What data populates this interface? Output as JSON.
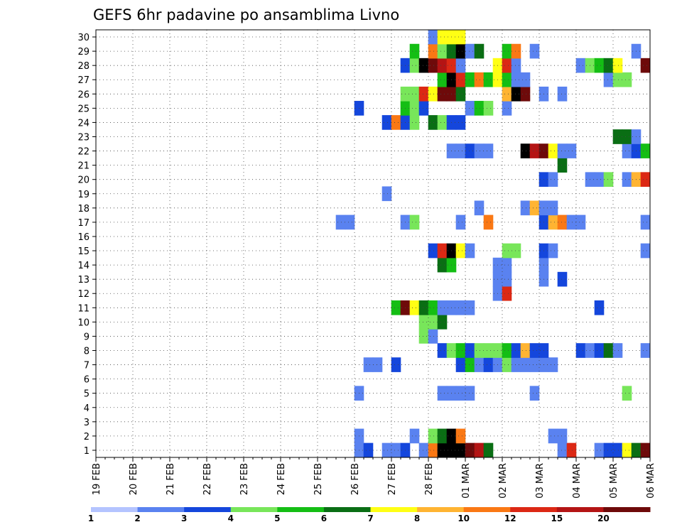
{
  "chart_data": {
    "type": "heatmap",
    "title": "GEFS 6hr padavine po ansamblima Livno",
    "xlabel": "",
    "ylabel": "",
    "x_unit": "6-hour step",
    "x_start": "19 FEB 00Z",
    "x_end": "06 MAR 00Z",
    "x_steps": 60,
    "x_ticks": [
      "19 FEB",
      "20 FEB",
      "21 FEB",
      "22 FEB",
      "23 FEB",
      "24 FEB",
      "25 FEB",
      "26 FEB",
      "27 FEB",
      "28 FEB",
      "01 MAR",
      "02 MAR",
      "03 MAR",
      "04 MAR",
      "05 MAR",
      "06 MAR"
    ],
    "y_ticks": [
      "1",
      "2",
      "3",
      "4",
      "5",
      "6",
      "7",
      "8",
      "9",
      "10",
      "11",
      "12",
      "13",
      "14",
      "15",
      "16",
      "17",
      "18",
      "19",
      "20",
      "21",
      "22",
      "23",
      "24",
      "25",
      "26",
      "27",
      "28",
      "29",
      "30"
    ],
    "ylim": [
      0.5,
      30.5
    ],
    "grid": true,
    "legend": {
      "placement": "bottom",
      "labels": [
        "1",
        "2",
        "3",
        "4",
        "5",
        "6",
        "7",
        "8",
        "10",
        "12",
        "15",
        "20"
      ],
      "colors": [
        "#b4c4ff",
        "#5a82f0",
        "#1446dc",
        "#78e65a",
        "#14be14",
        "#0a6e14",
        "#ffff14",
        "#ffb432",
        "#fa7814",
        "#dc2814",
        "#b41414",
        "#6e0a0a"
      ]
    },
    "note_points": "each point is [step, member, class]; step 0 = 19 FEB 00Z, step 4 = 20 FEB 00Z; class indexes legend.colors",
    "points": [
      [
        28,
        1,
        1
      ],
      [
        29,
        1,
        2
      ],
      [
        31,
        1,
        1
      ],
      [
        32,
        1,
        1
      ],
      [
        33,
        1,
        2
      ],
      [
        35,
        1,
        1
      ],
      [
        36,
        1,
        8
      ],
      [
        37,
        1,
        12
      ],
      [
        38,
        1,
        12
      ],
      [
        39,
        1,
        12
      ],
      [
        40,
        1,
        11
      ],
      [
        41,
        1,
        10
      ],
      [
        42,
        1,
        5
      ],
      [
        50,
        1,
        1
      ],
      [
        51,
        1,
        9
      ],
      [
        54,
        1,
        1
      ],
      [
        55,
        1,
        2
      ],
      [
        56,
        1,
        2
      ],
      [
        57,
        1,
        6
      ],
      [
        58,
        1,
        5
      ],
      [
        59,
        1,
        11
      ],
      [
        28,
        2,
        1
      ],
      [
        34,
        2,
        1
      ],
      [
        36,
        2,
        3
      ],
      [
        37,
        2,
        5
      ],
      [
        38,
        2,
        12
      ],
      [
        39,
        2,
        8
      ],
      [
        49,
        2,
        1
      ],
      [
        50,
        2,
        1
      ],
      [
        28,
        5,
        1
      ],
      [
        37,
        5,
        1
      ],
      [
        38,
        5,
        1
      ],
      [
        39,
        5,
        1
      ],
      [
        40,
        5,
        1
      ],
      [
        47,
        5,
        1
      ],
      [
        57,
        5,
        3
      ],
      [
        29,
        7,
        1
      ],
      [
        30,
        7,
        1
      ],
      [
        32,
        7,
        2
      ],
      [
        39,
        7,
        2
      ],
      [
        40,
        7,
        4
      ],
      [
        41,
        7,
        1
      ],
      [
        42,
        7,
        2
      ],
      [
        43,
        7,
        1
      ],
      [
        44,
        7,
        3
      ],
      [
        45,
        7,
        1
      ],
      [
        46,
        7,
        1
      ],
      [
        47,
        7,
        1
      ],
      [
        48,
        7,
        1
      ],
      [
        49,
        7,
        1
      ],
      [
        37,
        8,
        2
      ],
      [
        38,
        8,
        3
      ],
      [
        39,
        8,
        4
      ],
      [
        40,
        8,
        2
      ],
      [
        41,
        8,
        3
      ],
      [
        42,
        8,
        3
      ],
      [
        43,
        8,
        3
      ],
      [
        44,
        8,
        4
      ],
      [
        45,
        8,
        2
      ],
      [
        46,
        8,
        7
      ],
      [
        47,
        8,
        2
      ],
      [
        48,
        8,
        2
      ],
      [
        52,
        8,
        2
      ],
      [
        53,
        8,
        1
      ],
      [
        54,
        8,
        2
      ],
      [
        55,
        8,
        5
      ],
      [
        56,
        8,
        1
      ],
      [
        59,
        8,
        1
      ],
      [
        60,
        8,
        3
      ],
      [
        61,
        8,
        4
      ],
      [
        62,
        8,
        3
      ],
      [
        35,
        9,
        3
      ],
      [
        36,
        9,
        1
      ],
      [
        35,
        10,
        3
      ],
      [
        36,
        10,
        3
      ],
      [
        37,
        10,
        5
      ],
      [
        62,
        10,
        1
      ],
      [
        63,
        10,
        1
      ],
      [
        32,
        11,
        4
      ],
      [
        33,
        11,
        11
      ],
      [
        34,
        11,
        6
      ],
      [
        35,
        11,
        5
      ],
      [
        36,
        11,
        4
      ],
      [
        37,
        11,
        1
      ],
      [
        38,
        11,
        1
      ],
      [
        39,
        11,
        1
      ],
      [
        40,
        11,
        1
      ],
      [
        54,
        11,
        2
      ],
      [
        43,
        12,
        1
      ],
      [
        44,
        12,
        9
      ],
      [
        43,
        13,
        1
      ],
      [
        44,
        13,
        1
      ],
      [
        48,
        13,
        1
      ],
      [
        50,
        13,
        2
      ],
      [
        37,
        14,
        5
      ],
      [
        38,
        14,
        4
      ],
      [
        43,
        14,
        1
      ],
      [
        44,
        14,
        1
      ],
      [
        48,
        14,
        1
      ],
      [
        62,
        14,
        4
      ],
      [
        63,
        14,
        8
      ],
      [
        36,
        15,
        2
      ],
      [
        37,
        15,
        9
      ],
      [
        38,
        15,
        12
      ],
      [
        39,
        15,
        6
      ],
      [
        40,
        15,
        1
      ],
      [
        44,
        15,
        3
      ],
      [
        45,
        15,
        3
      ],
      [
        48,
        15,
        2
      ],
      [
        49,
        15,
        1
      ],
      [
        59,
        15,
        1
      ],
      [
        60,
        15,
        3
      ],
      [
        61,
        15,
        5
      ],
      [
        62,
        15,
        1
      ],
      [
        63,
        15,
        1
      ],
      [
        26,
        17,
        1
      ],
      [
        27,
        17,
        1
      ],
      [
        33,
        17,
        1
      ],
      [
        34,
        17,
        3
      ],
      [
        39,
        17,
        1
      ],
      [
        42,
        17,
        8
      ],
      [
        48,
        17,
        2
      ],
      [
        49,
        17,
        7
      ],
      [
        50,
        17,
        8
      ],
      [
        51,
        17,
        1
      ],
      [
        52,
        17,
        1
      ],
      [
        59,
        17,
        1
      ],
      [
        60,
        17,
        9
      ],
      [
        61,
        17,
        2
      ],
      [
        62,
        17,
        5
      ],
      [
        41,
        18,
        1
      ],
      [
        46,
        18,
        1
      ],
      [
        47,
        18,
        7
      ],
      [
        48,
        18,
        1
      ],
      [
        49,
        18,
        1
      ],
      [
        60,
        18,
        2
      ],
      [
        61,
        18,
        2
      ],
      [
        31,
        19,
        1
      ],
      [
        48,
        20,
        2
      ],
      [
        49,
        20,
        1
      ],
      [
        53,
        20,
        1
      ],
      [
        54,
        20,
        1
      ],
      [
        55,
        20,
        3
      ],
      [
        57,
        20,
        1
      ],
      [
        58,
        20,
        7
      ],
      [
        59,
        20,
        9
      ],
      [
        60,
        20,
        10
      ],
      [
        61,
        20,
        1
      ],
      [
        50,
        21,
        5
      ],
      [
        62,
        21,
        5
      ],
      [
        63,
        21,
        5
      ],
      [
        38,
        22,
        1
      ],
      [
        39,
        22,
        1
      ],
      [
        40,
        22,
        2
      ],
      [
        41,
        22,
        1
      ],
      [
        42,
        22,
        1
      ],
      [
        46,
        22,
        12
      ],
      [
        47,
        22,
        10
      ],
      [
        48,
        22,
        11
      ],
      [
        49,
        22,
        6
      ],
      [
        50,
        22,
        1
      ],
      [
        51,
        22,
        1
      ],
      [
        57,
        22,
        1
      ],
      [
        58,
        22,
        2
      ],
      [
        59,
        22,
        4
      ],
      [
        60,
        22,
        8
      ],
      [
        61,
        22,
        8
      ],
      [
        62,
        22,
        8
      ],
      [
        63,
        22,
        9
      ],
      [
        64,
        22,
        1
      ],
      [
        65,
        22,
        2
      ],
      [
        66,
        22,
        6
      ],
      [
        56,
        23,
        5
      ],
      [
        57,
        23,
        5
      ],
      [
        58,
        23,
        1
      ],
      [
        60,
        23,
        1
      ],
      [
        61,
        23,
        1
      ],
      [
        31,
        24,
        2
      ],
      [
        32,
        24,
        8
      ],
      [
        33,
        24,
        2
      ],
      [
        34,
        24,
        3
      ],
      [
        36,
        24,
        5
      ],
      [
        37,
        24,
        3
      ],
      [
        38,
        24,
        2
      ],
      [
        39,
        24,
        2
      ],
      [
        28,
        25,
        2
      ],
      [
        33,
        25,
        4
      ],
      [
        34,
        25,
        3
      ],
      [
        35,
        25,
        2
      ],
      [
        40,
        25,
        1
      ],
      [
        41,
        25,
        4
      ],
      [
        42,
        25,
        3
      ],
      [
        44,
        25,
        1
      ],
      [
        61,
        25,
        1
      ],
      [
        65,
        25,
        1
      ],
      [
        33,
        26,
        3
      ],
      [
        34,
        26,
        3
      ],
      [
        35,
        26,
        9
      ],
      [
        36,
        26,
        6
      ],
      [
        37,
        26,
        11
      ],
      [
        38,
        26,
        11
      ],
      [
        39,
        26,
        5
      ],
      [
        44,
        26,
        7
      ],
      [
        45,
        26,
        12
      ],
      [
        46,
        26,
        11
      ],
      [
        48,
        26,
        1
      ],
      [
        50,
        26,
        1
      ],
      [
        61,
        26,
        2
      ],
      [
        63,
        26,
        1
      ],
      [
        64,
        26,
        4
      ],
      [
        65,
        26,
        1
      ],
      [
        37,
        27,
        4
      ],
      [
        38,
        27,
        12
      ],
      [
        39,
        27,
        9
      ],
      [
        40,
        27,
        4
      ],
      [
        41,
        27,
        8
      ],
      [
        42,
        27,
        4
      ],
      [
        43,
        27,
        6
      ],
      [
        44,
        27,
        4
      ],
      [
        45,
        27,
        1
      ],
      [
        46,
        27,
        1
      ],
      [
        55,
        27,
        1
      ],
      [
        56,
        27,
        3
      ],
      [
        57,
        27,
        3
      ],
      [
        60,
        27,
        3
      ],
      [
        65,
        27,
        11
      ],
      [
        33,
        28,
        2
      ],
      [
        34,
        28,
        3
      ],
      [
        35,
        28,
        12
      ],
      [
        36,
        28,
        11
      ],
      [
        37,
        28,
        10
      ],
      [
        38,
        28,
        9
      ],
      [
        39,
        28,
        1
      ],
      [
        43,
        28,
        6
      ],
      [
        44,
        28,
        9
      ],
      [
        45,
        28,
        1
      ],
      [
        52,
        28,
        1
      ],
      [
        53,
        28,
        3
      ],
      [
        54,
        28,
        4
      ],
      [
        55,
        28,
        5
      ],
      [
        56,
        28,
        6
      ],
      [
        59,
        28,
        11
      ],
      [
        60,
        28,
        12
      ],
      [
        61,
        28,
        5
      ],
      [
        62,
        28,
        1
      ],
      [
        64,
        28,
        11
      ],
      [
        65,
        28,
        3
      ],
      [
        34,
        29,
        4
      ],
      [
        36,
        29,
        8
      ],
      [
        37,
        29,
        3
      ],
      [
        38,
        29,
        5
      ],
      [
        39,
        29,
        12
      ],
      [
        40,
        29,
        1
      ],
      [
        41,
        29,
        5
      ],
      [
        44,
        29,
        4
      ],
      [
        45,
        29,
        8
      ],
      [
        47,
        29,
        1
      ],
      [
        58,
        29,
        1
      ],
      [
        62,
        29,
        4
      ],
      [
        63,
        29,
        8
      ],
      [
        64,
        29,
        7
      ],
      [
        65,
        29,
        8
      ],
      [
        66,
        29,
        9
      ],
      [
        36,
        30,
        1
      ],
      [
        37,
        30,
        6
      ],
      [
        38,
        30,
        6
      ],
      [
        39,
        30,
        6
      ]
    ]
  }
}
